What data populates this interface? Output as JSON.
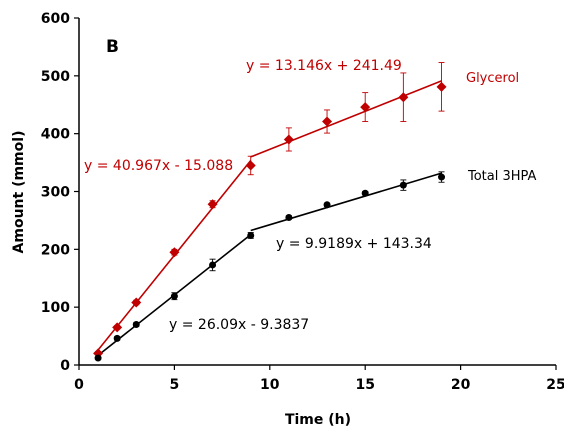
{
  "chart_data": {
    "type": "scatter",
    "panel_label": "B",
    "xlabel": "Time (h)",
    "ylabel": "Amount (mmol)",
    "xlim": [
      0,
      25
    ],
    "ylim": [
      0,
      600
    ],
    "xticks": [
      "0",
      "5",
      "10",
      "15",
      "20",
      "25"
    ],
    "yticks": [
      "0",
      "100",
      "200",
      "300",
      "400",
      "500",
      "600"
    ],
    "grid": false,
    "series": [
      {
        "name": "Glycerol",
        "color": "#c00000",
        "marker": "diamond",
        "x": [
          1,
          2,
          3,
          5,
          7,
          9,
          11,
          13,
          15,
          17,
          19
        ],
        "y": [
          20,
          65,
          108,
          195,
          278,
          345,
          390,
          421,
          446,
          463,
          481
        ],
        "yerr": [
          3,
          3,
          4,
          5,
          6,
          16,
          20,
          20,
          25,
          42,
          42
        ]
      },
      {
        "name": "Total 3HPA",
        "color": "#000000",
        "marker": "circle",
        "x": [
          1,
          2,
          3,
          5,
          7,
          9,
          11,
          13,
          15,
          17,
          19
        ],
        "y": [
          12,
          46,
          70,
          119,
          173,
          224,
          255,
          277,
          297,
          311,
          325
        ],
        "yerr": [
          2,
          3,
          3,
          6,
          10,
          5,
          3,
          3,
          3,
          9,
          9
        ]
      }
    ],
    "fits": [
      {
        "color": "#c00000",
        "x": [
          1,
          9
        ],
        "slope": 40.967,
        "intercept": -15.088,
        "equation": "y = 40.967x - 15.088"
      },
      {
        "color": "#c00000",
        "x": [
          9,
          19
        ],
        "slope": 13.146,
        "intercept": 241.49,
        "equation": "y = 13.146x + 241.49"
      },
      {
        "color": "#000000",
        "x": [
          1,
          9
        ],
        "slope": 26.09,
        "intercept": -9.3837,
        "equation": "y = 26.09x - 9.3837"
      },
      {
        "color": "#000000",
        "x": [
          9,
          19
        ],
        "slope": 9.9189,
        "intercept": 143.34,
        "equation": "y = 9.9189x + 143.34"
      }
    ]
  }
}
